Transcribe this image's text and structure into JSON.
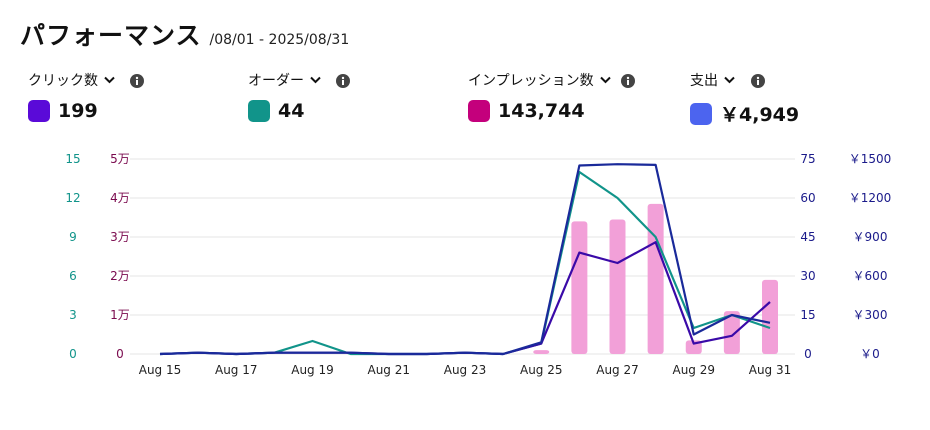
{
  "header": {
    "title": "パフォーマンス",
    "date_range": "/08/01 - 2025/08/31"
  },
  "metrics": [
    {
      "label": "クリック数",
      "value": "199",
      "color": "#5a0ad8"
    },
    {
      "label": "オーダー",
      "value": "44",
      "color": "#11948a"
    },
    {
      "label": "インプレッション数",
      "value": "143,744",
      "color": "#c4007c"
    },
    {
      "label": "支出",
      "value": "￥4,949",
      "color": "#4c64ef"
    }
  ],
  "icons": {
    "dropdown": "chevron-down-icon",
    "info": "info-icon"
  },
  "chart_data": {
    "type": "bar+line",
    "x": [
      "Aug 15",
      "Aug 16",
      "Aug 17",
      "Aug 18",
      "Aug 19",
      "Aug 20",
      "Aug 21",
      "Aug 22",
      "Aug 23",
      "Aug 24",
      "Aug 25",
      "Aug 26",
      "Aug 27",
      "Aug 28",
      "Aug 29",
      "Aug 30",
      "Aug 31"
    ],
    "x_tick_labels": [
      "Aug 15",
      "Aug 17",
      "Aug 19",
      "Aug 21",
      "Aug 23",
      "Aug 25",
      "Aug 27",
      "Aug 29",
      "Aug 31"
    ],
    "axes": {
      "orders": {
        "ticks": [
          "0",
          "3",
          "6",
          "9",
          "12",
          "15"
        ],
        "ylim": [
          0,
          15
        ],
        "color": "#11948a"
      },
      "impressions": {
        "ticks": [
          "0",
          "1万",
          "2万",
          "3万",
          "4万",
          "5万"
        ],
        "ylim": [
          0,
          50000
        ],
        "color": "#7a0a4e"
      },
      "clicks": {
        "ticks": [
          "0",
          "15",
          "30",
          "45",
          "60",
          "75"
        ],
        "ylim": [
          0,
          75
        ],
        "color": "#1a1a8a"
      },
      "spend": {
        "ticks": [
          "￥0",
          "￥300",
          "￥600",
          "￥900",
          "￥1200",
          "￥1500"
        ],
        "ylim": [
          0,
          1500
        ],
        "color": "#1a1a8a"
      }
    },
    "series": [
      {
        "name": "インプレッション数",
        "type": "bar",
        "axis": "impressions",
        "color": "#f2a0d8",
        "values": [
          0,
          0,
          0,
          0,
          0,
          0,
          0,
          0,
          0,
          0,
          1000,
          34000,
          34500,
          38500,
          3500,
          11000,
          19000
        ]
      },
      {
        "name": "オーダー",
        "type": "line",
        "axis": "orders",
        "color": "#11948a",
        "values": [
          0,
          0.1,
          0,
          0.1,
          1,
          0,
          0,
          0,
          0.1,
          0,
          0.8,
          14,
          12,
          9,
          2,
          3,
          2
        ]
      },
      {
        "name": "クリック数",
        "type": "line",
        "axis": "clicks",
        "color": "#3a0aa8",
        "values": [
          0,
          0.5,
          0,
          0.5,
          0.5,
          0.5,
          0,
          0,
          0.5,
          0,
          4,
          39,
          35,
          43,
          4,
          7,
          20
        ]
      },
      {
        "name": "支出",
        "type": "line",
        "axis": "spend",
        "color": "#1a2a9a",
        "values": [
          0,
          10,
          0,
          10,
          10,
          10,
          0,
          0,
          10,
          0,
          90,
          1450,
          1460,
          1455,
          150,
          300,
          240
        ]
      }
    ],
    "grid": true
  }
}
